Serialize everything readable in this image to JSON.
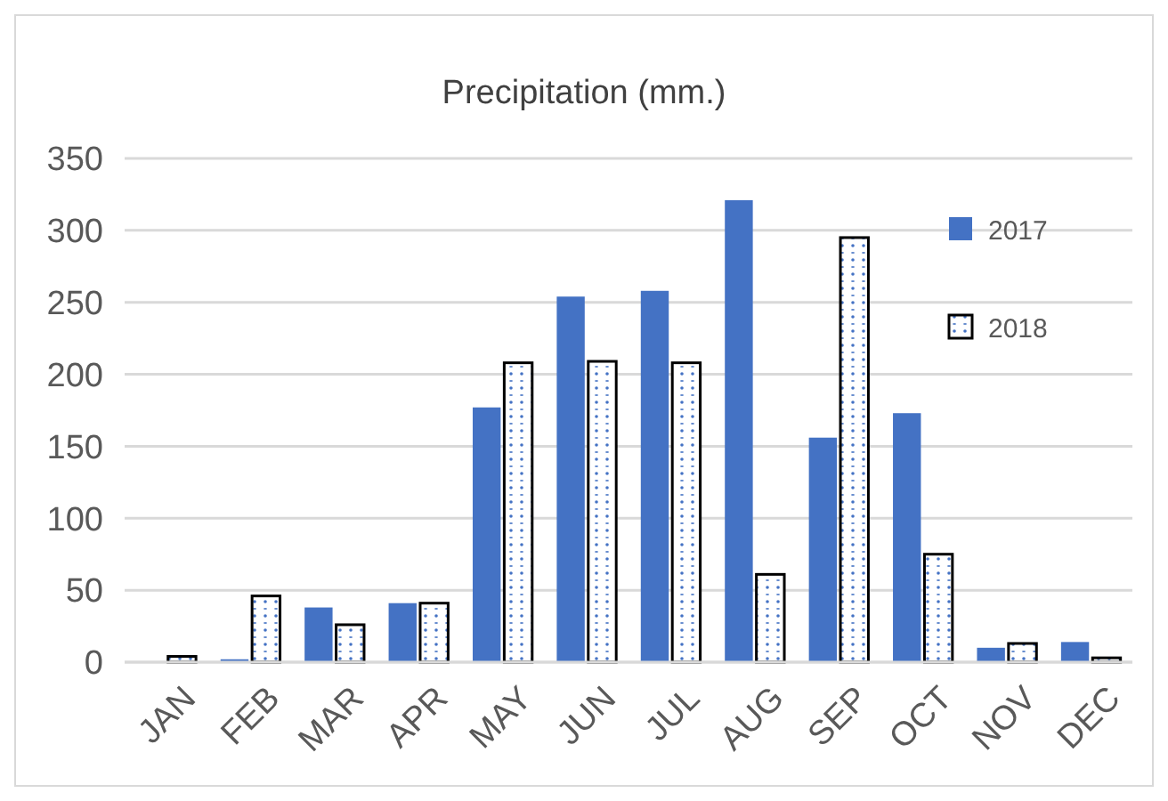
{
  "chart_data": {
    "type": "bar",
    "title": "Precipitation (mm.)",
    "categories": [
      "JAN",
      "FEB",
      "MAR",
      "APR",
      "MAY",
      "JUN",
      "JUL",
      "AUG",
      "SEP",
      "OCT",
      "NOV",
      "DEC"
    ],
    "series": [
      {
        "name": "2017",
        "color": "#4472c4",
        "values": [
          0,
          2,
          38,
          41,
          177,
          254,
          258,
          321,
          156,
          173,
          10,
          14
        ]
      },
      {
        "name": "2018",
        "color": "#000000",
        "values": [
          4,
          46,
          26,
          41,
          208,
          209,
          208,
          61,
          295,
          75,
          13,
          3
        ]
      }
    ],
    "ylim": [
      0,
      350
    ],
    "yticks": [
      0,
      50,
      100,
      150,
      200,
      250,
      300,
      350
    ],
    "grid": "y",
    "legend": "right"
  }
}
